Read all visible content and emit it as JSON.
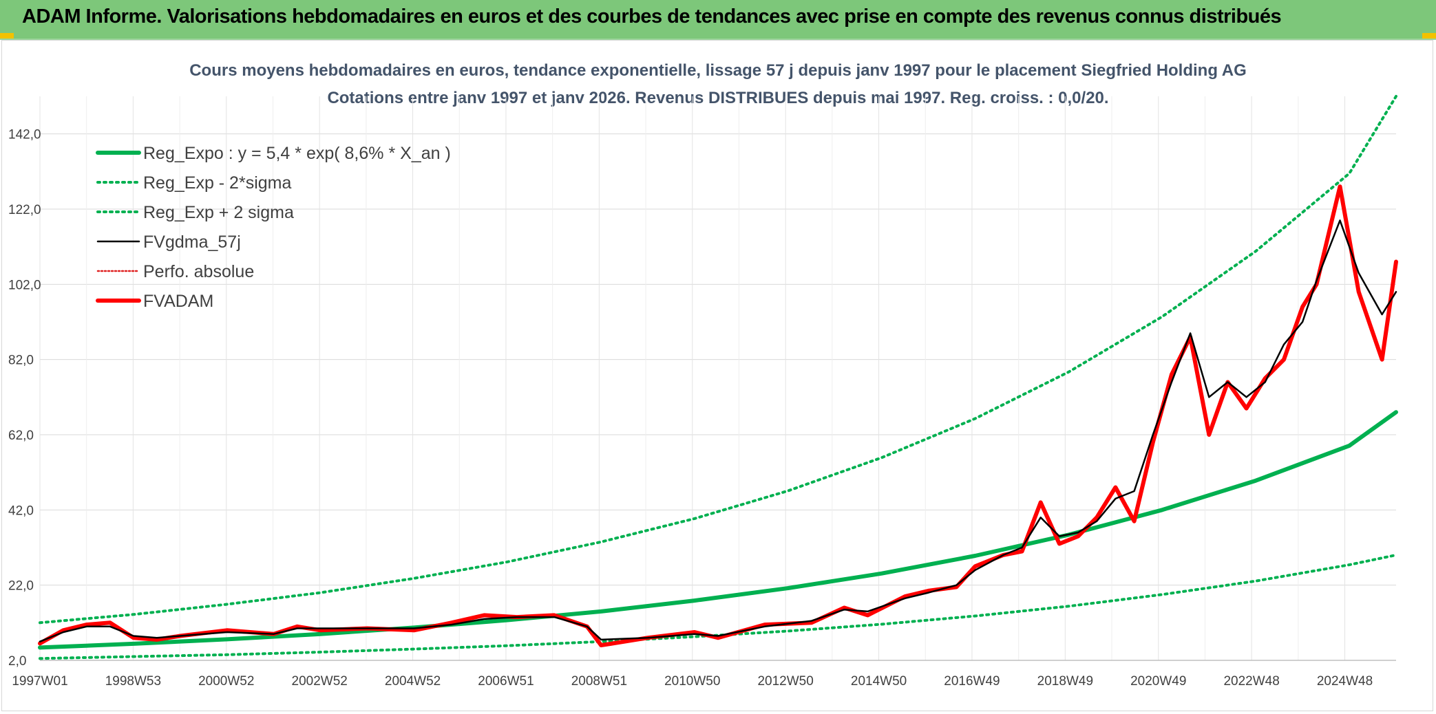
{
  "header": {
    "title": "ADAM Informe. Valorisations hebdomadaires en euros et des courbes de tendances avec prise en compte des revenus connus distribués",
    "background": "#7dc77a",
    "accent": "#f2c200"
  },
  "chart_data": {
    "type": "line",
    "title": "Cours moyens hebdomadaires en euros, tendance exponentielle, lissage 57 j depuis janv 1997 pour le placement Siegfried Holding AG",
    "subtitle": "Cotations entre janv 1997 et janv 2026. Revenus DISTRIBUES depuis mai 1997. Reg. croiss. : 0,0/20.",
    "xlabel": "",
    "ylabel": "",
    "x_range": [
      1997.0,
      2026.0
    ],
    "ylim": [
      2.0,
      152.0
    ],
    "y_ticks": [
      "2,0",
      "22,0",
      "42,0",
      "62,0",
      "82,0",
      "102,0",
      "122,0",
      "142,0"
    ],
    "x_tick_labels": [
      "1997W01",
      "1998W53",
      "2000W52",
      "2002W52",
      "2004W52",
      "2006W51",
      "2008W51",
      "2010W50",
      "2012W50",
      "2014W50",
      "2016W49",
      "2018W49",
      "2020W49",
      "2022W48",
      "2024W48"
    ],
    "grid": true,
    "legend_position": "top-left",
    "series": [
      {
        "name": "Reg_Expo : y = 5,4 * exp( 8,6% *  X_an )",
        "color": "#00b050",
        "style": "solid-thick",
        "x": [
          1997,
          1999,
          2001,
          2003,
          2005,
          2007,
          2009,
          2011,
          2013,
          2015,
          2017,
          2019,
          2021,
          2023,
          2025,
          2026
        ],
        "values": [
          5.4,
          6.4,
          7.6,
          9.0,
          10.7,
          12.7,
          15.0,
          17.9,
          21.2,
          25.1,
          29.8,
          35.4,
          42.0,
          49.8,
          59.1,
          68.0
        ]
      },
      {
        "name": "Reg_Exp - 2*sigma",
        "color": "#00b050",
        "style": "dotted",
        "x": [
          1997,
          1999,
          2001,
          2003,
          2005,
          2007,
          2009,
          2011,
          2013,
          2015,
          2017,
          2019,
          2021,
          2023,
          2025,
          2026
        ],
        "values": [
          2.5,
          3.0,
          3.5,
          4.2,
          5.0,
          5.9,
          7.0,
          8.3,
          9.8,
          11.6,
          13.8,
          16.4,
          19.5,
          23.1,
          27.4,
          30.0
        ]
      },
      {
        "name": "Reg_Exp + 2 sigma",
        "color": "#00b050",
        "style": "dotted",
        "x": [
          1997,
          1999,
          2001,
          2003,
          2005,
          2007,
          2009,
          2011,
          2013,
          2015,
          2017,
          2019,
          2021,
          2023,
          2025,
          2026
        ],
        "values": [
          12.0,
          14.2,
          16.9,
          20.0,
          23.8,
          28.2,
          33.5,
          39.7,
          47.1,
          55.9,
          66.3,
          78.7,
          93.4,
          110.8,
          131.5,
          152.0
        ]
      },
      {
        "name": "FVgdma_57j",
        "color": "#000000",
        "style": "solid",
        "x": [
          1997.0,
          1997.5,
          1998.0,
          1998.5,
          1999.0,
          1999.5,
          2000.0,
          2001.0,
          2002.0,
          2002.5,
          2003.0,
          2004.0,
          2005.0,
          2005.8,
          2006.5,
          2007.2,
          2008.0,
          2008.7,
          2009.0,
          2010.0,
          2011.0,
          2011.5,
          2012.5,
          2013.5,
          2014.2,
          2014.7,
          2015.5,
          2016.0,
          2016.6,
          2017.0,
          2017.6,
          2018.0,
          2018.4,
          2018.8,
          2019.2,
          2019.6,
          2020.0,
          2020.4,
          2020.8,
          2021.2,
          2021.6,
          2022.0,
          2022.4,
          2022.8,
          2023.2,
          2023.6,
          2024.0,
          2024.3,
          2024.8,
          2025.2,
          2025.7,
          2026.0
        ],
        "values": [
          7.0,
          9.5,
          11.0,
          11.0,
          8.5,
          8.0,
          8.5,
          9.5,
          9.0,
          10.5,
          10.5,
          10.5,
          10.5,
          11.5,
          13.0,
          13.5,
          13.5,
          11.0,
          7.5,
          8.0,
          9.0,
          8.5,
          11.0,
          12.5,
          15.5,
          15.0,
          18.5,
          20.0,
          22.0,
          26.0,
          30.0,
          32.0,
          40.0,
          35.0,
          36.0,
          39.0,
          45.0,
          47.0,
          62.0,
          76.0,
          89.0,
          72.0,
          76.0,
          72.0,
          76.0,
          86.0,
          92.0,
          103.0,
          119.0,
          105.0,
          94.0,
          100.0
        ]
      },
      {
        "name": "Perfo. absolue",
        "color": "#e02020",
        "style": "dotted",
        "x": [
          1997.0,
          1997.5,
          1998.0,
          1998.5,
          1999.0,
          1999.5,
          2000.0,
          2001.0,
          2002.0,
          2002.5,
          2003.0,
          2004.0,
          2005.0,
          2005.8,
          2006.5,
          2007.2,
          2008.0,
          2008.7,
          2009.0,
          2010.0,
          2011.0,
          2011.5,
          2012.5,
          2013.5,
          2014.2,
          2014.7,
          2015.5,
          2016.0,
          2016.6,
          2017.0,
          2017.6,
          2018.0,
          2018.4,
          2018.8,
          2019.2,
          2019.6,
          2020.0,
          2020.4,
          2020.8,
          2021.2,
          2021.6,
          2022.0,
          2022.4,
          2022.8,
          2023.2,
          2023.6,
          2024.0,
          2024.3,
          2024.8,
          2025.2,
          2025.7,
          2026.0
        ],
        "values": [
          6.5,
          10.0,
          11.5,
          12.0,
          8.0,
          7.5,
          8.5,
          10.0,
          9.0,
          11.0,
          10.0,
          10.5,
          10.0,
          12.0,
          14.0,
          13.5,
          14.0,
          11.0,
          6.0,
          8.0,
          9.5,
          8.0,
          11.5,
          12.0,
          16.0,
          14.0,
          19.0,
          20.5,
          21.5,
          27.0,
          30.0,
          31.0,
          44.0,
          33.0,
          35.0,
          40.0,
          48.0,
          39.0,
          60.0,
          78.0,
          88.0,
          62.0,
          76.0,
          69.0,
          77.0,
          82.0,
          96.0,
          102.0,
          128.0,
          100.0,
          82.0,
          108.0
        ]
      },
      {
        "name": "FVADAM",
        "color": "#ff0000",
        "style": "solid-thick",
        "x": [
          1997.0,
          1997.5,
          1998.0,
          1998.5,
          1999.0,
          1999.5,
          2000.0,
          2001.0,
          2002.0,
          2002.5,
          2003.0,
          2004.0,
          2005.0,
          2005.8,
          2006.5,
          2007.2,
          2008.0,
          2008.7,
          2009.0,
          2010.0,
          2011.0,
          2011.5,
          2012.5,
          2013.5,
          2014.2,
          2014.7,
          2015.5,
          2016.0,
          2016.6,
          2017.0,
          2017.6,
          2018.0,
          2018.4,
          2018.8,
          2019.2,
          2019.6,
          2020.0,
          2020.4,
          2020.8,
          2021.2,
          2021.6,
          2022.0,
          2022.4,
          2022.8,
          2023.2,
          2023.6,
          2024.0,
          2024.3,
          2024.8,
          2025.2,
          2025.7,
          2026.0
        ],
        "values": [
          6.5,
          10.0,
          11.5,
          12.0,
          8.0,
          7.5,
          8.5,
          10.0,
          9.0,
          11.0,
          10.0,
          10.5,
          10.0,
          12.0,
          14.0,
          13.5,
          14.0,
          11.0,
          6.0,
          8.0,
          9.5,
          8.0,
          11.5,
          12.0,
          16.0,
          14.0,
          19.0,
          20.5,
          21.5,
          27.0,
          30.0,
          31.0,
          44.0,
          33.0,
          35.0,
          40.0,
          48.0,
          39.0,
          60.0,
          78.0,
          88.0,
          62.0,
          76.0,
          69.0,
          77.0,
          82.0,
          96.0,
          102.0,
          128.0,
          100.0,
          82.0,
          108.0
        ]
      }
    ]
  }
}
